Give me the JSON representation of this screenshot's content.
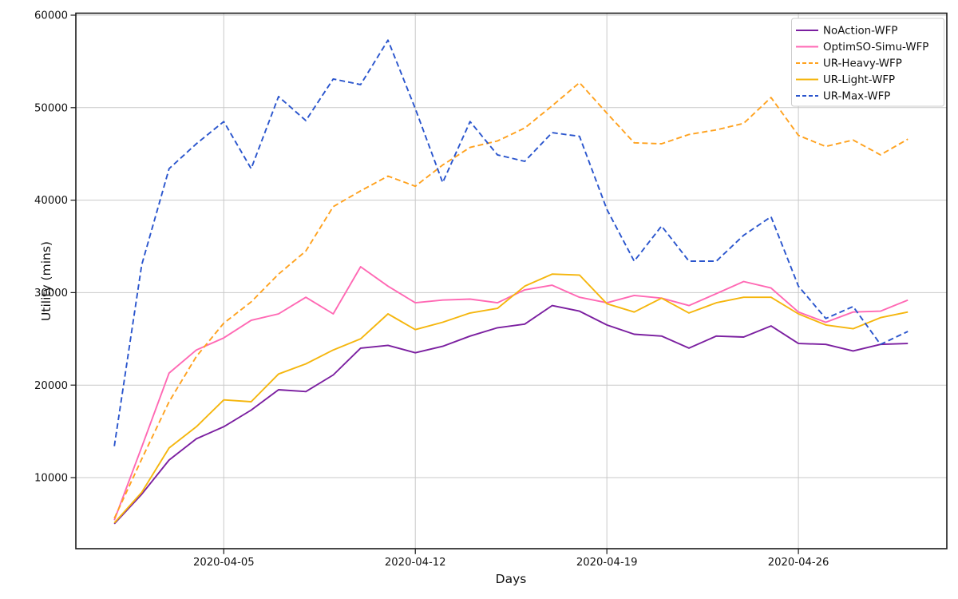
{
  "chart_data": {
    "type": "line",
    "title": "",
    "xlabel": "Days",
    "ylabel": "Utility (mins)",
    "grid": true,
    "legend_position": "upper right",
    "x": [
      "2020-04-01",
      "2020-04-02",
      "2020-04-03",
      "2020-04-04",
      "2020-04-05",
      "2020-04-06",
      "2020-04-07",
      "2020-04-08",
      "2020-04-09",
      "2020-04-10",
      "2020-04-11",
      "2020-04-12",
      "2020-04-13",
      "2020-04-14",
      "2020-04-15",
      "2020-04-16",
      "2020-04-17",
      "2020-04-18",
      "2020-04-19",
      "2020-04-20",
      "2020-04-21",
      "2020-04-22",
      "2020-04-23",
      "2020-04-24",
      "2020-04-25",
      "2020-04-26",
      "2020-04-27",
      "2020-04-28",
      "2020-04-29",
      "2020-04-30"
    ],
    "xtick_labels": [
      "2020-04-05",
      "2020-04-12",
      "2020-04-19",
      "2020-04-26"
    ],
    "xtick_day_indices": [
      4,
      11,
      18,
      25
    ],
    "yticks": [
      10000,
      20000,
      30000,
      40000,
      50000,
      60000
    ],
    "ylim": [
      2700,
      60200
    ],
    "series": [
      {
        "name": "NoAction-WFP",
        "color": "#7b1fa0",
        "line_style": "solid",
        "values": [
          5000,
          8200,
          11900,
          14200,
          15500,
          17300,
          19500,
          19300,
          21100,
          24000,
          24300,
          23500,
          24200,
          25300,
          26200,
          26600,
          28600,
          28000,
          26500,
          25500,
          25300,
          24000,
          25300,
          25200,
          26400,
          24500,
          24400,
          23700,
          24400,
          24500
        ]
      },
      {
        "name": "OptimSO-Simu-WFP",
        "color": "#ff69b4",
        "line_style": "solid",
        "values": [
          5400,
          13300,
          21300,
          23800,
          25100,
          27000,
          27700,
          29500,
          27700,
          32800,
          30700,
          28900,
          29200,
          29300,
          28900,
          30300,
          30800,
          29500,
          28900,
          29700,
          29400,
          28600,
          29900,
          31200,
          30500,
          27900,
          26800,
          27900,
          28000,
          29200
        ]
      },
      {
        "name": "UR-Heavy-WFP",
        "color": "#ffa21f",
        "line_style": "dashed",
        "values": [
          5600,
          12000,
          18200,
          23100,
          26700,
          29000,
          32000,
          34500,
          39300,
          41000,
          42600,
          41500,
          43800,
          45700,
          46400,
          47800,
          50200,
          52700,
          49400,
          46200,
          46100,
          47100,
          47600,
          48300,
          51100,
          47000,
          45800,
          46500,
          44900,
          46600
        ]
      },
      {
        "name": "UR-Light-WFP",
        "color": "#f5b60e",
        "line_style": "solid",
        "values": [
          5100,
          8400,
          13200,
          15500,
          18400,
          18200,
          21200,
          22300,
          23800,
          25000,
          27700,
          26000,
          26800,
          27800,
          28300,
          30700,
          32000,
          31900,
          28800,
          27900,
          29400,
          27800,
          28900,
          29500,
          29500,
          27700,
          26500,
          26100,
          27300,
          27900
        ]
      },
      {
        "name": "UR-Max-WFP",
        "color": "#2a55cd",
        "line_style": "dashed",
        "values": [
          13400,
          33000,
          43400,
          46100,
          48500,
          43400,
          51200,
          48600,
          53100,
          52500,
          57300,
          49900,
          41900,
          48500,
          44900,
          44200,
          47300,
          46900,
          39000,
          33400,
          37200,
          33400,
          33400,
          36200,
          38200,
          30700,
          27200,
          28500,
          24400,
          25800
        ]
      }
    ]
  }
}
